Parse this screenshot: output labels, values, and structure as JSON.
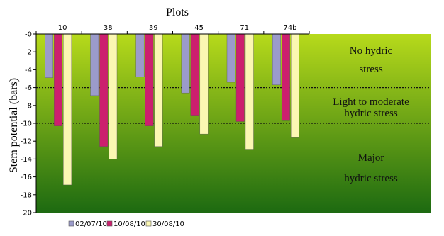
{
  "chart_data": {
    "type": "bar",
    "title": "Plots",
    "xlabel": "",
    "ylabel": "Stem potential (bars)",
    "categories": [
      "10",
      "38",
      "39",
      "45",
      "71",
      "74b"
    ],
    "series": [
      {
        "name": "02/07/10",
        "color": "#9b9bcb",
        "values": [
          -4.9,
          -6.9,
          -4.8,
          -6.6,
          -5.4,
          -5.7
        ]
      },
      {
        "name": "10/08/10",
        "color": "#cc1f6e",
        "values": [
          -10.3,
          -12.6,
          -10.3,
          -9.1,
          -9.8,
          -9.7
        ]
      },
      {
        "name": "30/08/10",
        "color": "#fbf7b2",
        "values": [
          -16.9,
          -14.0,
          -12.6,
          -11.2,
          -12.9,
          -11.6
        ]
      }
    ],
    "ylim": [
      -20,
      0
    ],
    "yticks": [
      0,
      -2,
      -4,
      -6,
      -8,
      -10,
      -12,
      -14,
      -16,
      -18,
      -20
    ],
    "ytick_labels": [
      "-0",
      "-2",
      "-4",
      "-6",
      "-8",
      "-10",
      "-12",
      "-14",
      "-16",
      "-18",
      "-20"
    ],
    "threshold_lines": [
      -6,
      -10
    ],
    "zones": [
      {
        "lines": [
          "No hydric",
          "stress"
        ],
        "color": "#111111"
      },
      {
        "lines": [
          "Light to moderate",
          "hydric stress"
        ],
        "color": "#111111"
      },
      {
        "lines": [
          "Major",
          "hydric stress"
        ],
        "color": "#111111"
      }
    ],
    "legend_position": "bottom-left",
    "background_gradient": [
      "#b7da1b",
      "#1d6a11"
    ],
    "grid": false
  }
}
